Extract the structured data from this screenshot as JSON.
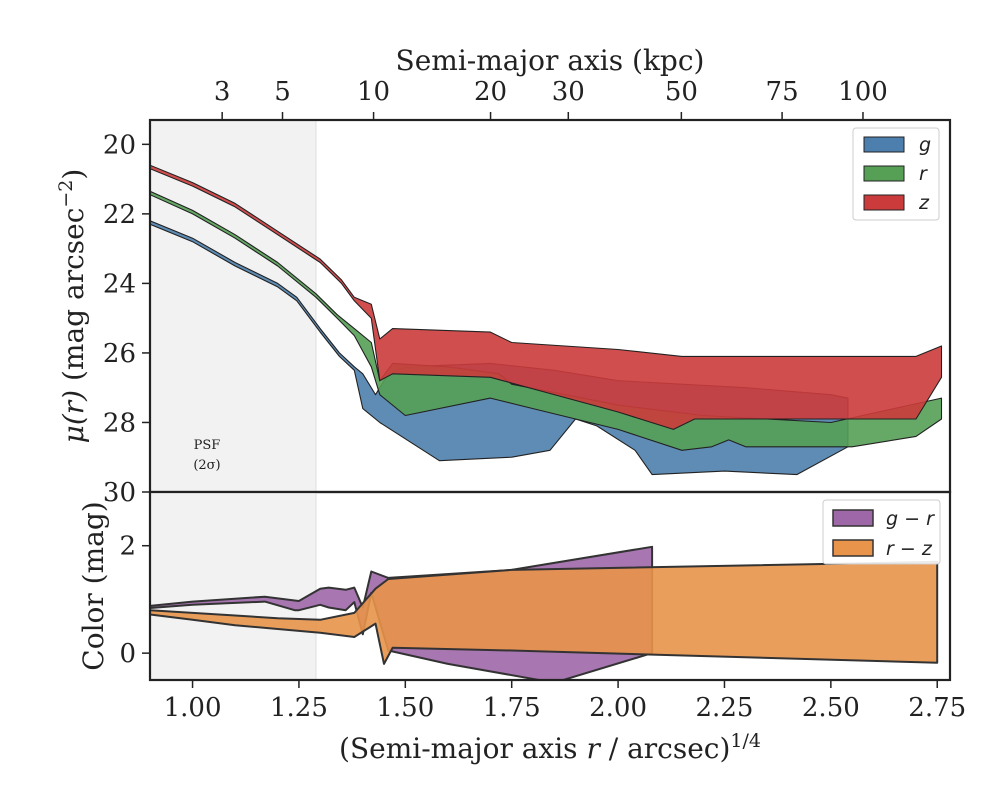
{
  "chart_data": [
    {
      "type": "area",
      "panel": "top",
      "title": "",
      "top_xlabel": "Semi-major axis (kpc)",
      "top_ticks": [
        "3",
        "5",
        "10",
        "20",
        "30",
        "50",
        "75",
        "100"
      ],
      "top_tick_values_x": [
        1.0696,
        1.2114,
        1.4254,
        1.7003,
        1.883,
        2.1487,
        2.3854,
        2.5755
      ],
      "ylabel": "μ(r) (mag arcsec⁻²)",
      "ylim": [
        30,
        19.3
      ],
      "yticks": [
        20,
        22,
        24,
        26,
        28,
        30
      ],
      "xlim": [
        0.9,
        2.78
      ],
      "psf_region_x": [
        0.9,
        1.29
      ],
      "psf_label": [
        "PSF",
        "(2σ)"
      ],
      "legend_position": "upper right",
      "series": [
        {
          "name": "g",
          "color": "#4c7fad",
          "upper": [
            [
              0.9,
              22.2
            ],
            [
              1.0,
              22.7
            ],
            [
              1.1,
              23.4
            ],
            [
              1.2,
              24.0
            ],
            [
              1.245,
              24.4
            ],
            [
              1.3,
              25.3
            ],
            [
              1.345,
              26.0
            ],
            [
              1.38,
              26.4
            ],
            [
              1.4,
              26.6
            ],
            [
              1.43,
              27.2
            ],
            [
              1.46,
              26.6
            ],
            [
              1.5,
              26.4
            ],
            [
              1.7,
              26.3
            ],
            [
              1.85,
              26.5
            ],
            [
              2.0,
              26.8
            ],
            [
              2.3,
              27.0
            ],
            [
              2.5,
              27.2
            ],
            [
              2.54,
              27.3
            ]
          ],
          "lower": [
            [
              0.9,
              22.3
            ],
            [
              1.0,
              22.8
            ],
            [
              1.1,
              23.5
            ],
            [
              1.2,
              24.1
            ],
            [
              1.245,
              24.5
            ],
            [
              1.3,
              25.4
            ],
            [
              1.345,
              26.1
            ],
            [
              1.38,
              26.5
            ],
            [
              1.4,
              27.6
            ],
            [
              1.44,
              28.0
            ],
            [
              1.58,
              29.1
            ],
            [
              1.75,
              29.0
            ],
            [
              1.84,
              28.8
            ],
            [
              1.9,
              27.9
            ],
            [
              1.95,
              28.1
            ],
            [
              2.04,
              28.8
            ],
            [
              2.08,
              29.5
            ],
            [
              2.25,
              29.4
            ],
            [
              2.42,
              29.5
            ],
            [
              2.54,
              28.7
            ]
          ]
        },
        {
          "name": "r",
          "color": "#55a055",
          "upper": [
            [
              0.9,
              21.35
            ],
            [
              1.0,
              21.9
            ],
            [
              1.1,
              22.6
            ],
            [
              1.2,
              23.4
            ],
            [
              1.29,
              24.3
            ],
            [
              1.34,
              24.9
            ],
            [
              1.38,
              25.3
            ],
            [
              1.42,
              25.7
            ],
            [
              1.44,
              26.8
            ],
            [
              1.47,
              26.3
            ],
            [
              1.6,
              26.4
            ],
            [
              1.72,
              26.6
            ],
            [
              1.75,
              26.9
            ],
            [
              2.0,
              27.5
            ],
            [
              2.2,
              27.8
            ],
            [
              2.5,
              28.0
            ],
            [
              2.76,
              27.3
            ]
          ],
          "lower": [
            [
              0.9,
              21.45
            ],
            [
              1.0,
              22.0
            ],
            [
              1.1,
              22.7
            ],
            [
              1.2,
              23.5
            ],
            [
              1.29,
              24.4
            ],
            [
              1.34,
              25.0
            ],
            [
              1.38,
              25.5
            ],
            [
              1.42,
              26.4
            ],
            [
              1.44,
              27.2
            ],
            [
              1.5,
              27.8
            ],
            [
              1.7,
              27.3
            ],
            [
              1.8,
              27.6
            ],
            [
              2.0,
              28.2
            ],
            [
              2.15,
              28.8
            ],
            [
              2.22,
              28.7
            ],
            [
              2.26,
              28.5
            ],
            [
              2.3,
              28.7
            ],
            [
              2.55,
              28.7
            ],
            [
              2.7,
              28.4
            ],
            [
              2.76,
              27.9
            ]
          ]
        },
        {
          "name": "z",
          "color": "#cc3b3b",
          "upper": [
            [
              0.9,
              20.6
            ],
            [
              1.0,
              21.1
            ],
            [
              1.1,
              21.7
            ],
            [
              1.2,
              22.5
            ],
            [
              1.3,
              23.3
            ],
            [
              1.35,
              23.9
            ],
            [
              1.38,
              24.4
            ],
            [
              1.42,
              24.6
            ],
            [
              1.44,
              25.6
            ],
            [
              1.47,
              25.3
            ],
            [
              1.7,
              25.4
            ],
            [
              1.75,
              25.7
            ],
            [
              2.0,
              25.9
            ],
            [
              2.15,
              26.1
            ],
            [
              2.7,
              26.1
            ],
            [
              2.76,
              25.8
            ]
          ],
          "lower": [
            [
              0.9,
              20.7
            ],
            [
              1.0,
              21.2
            ],
            [
              1.1,
              21.8
            ],
            [
              1.2,
              22.6
            ],
            [
              1.3,
              23.4
            ],
            [
              1.35,
              24.0
            ],
            [
              1.38,
              24.5
            ],
            [
              1.42,
              25.0
            ],
            [
              1.44,
              26.8
            ],
            [
              1.47,
              26.6
            ],
            [
              1.7,
              26.7
            ],
            [
              2.0,
              27.7
            ],
            [
              2.13,
              28.2
            ],
            [
              2.18,
              27.9
            ],
            [
              2.7,
              27.9
            ],
            [
              2.76,
              26.7
            ]
          ]
        }
      ]
    },
    {
      "type": "area",
      "panel": "bottom",
      "title": "",
      "xlabel": "(Semi-major axis r / arcsec)^1/4",
      "ylabel": "Color (mag)",
      "ylim": [
        -0.5,
        3.0
      ],
      "yticks": [
        0,
        2
      ],
      "xlim": [
        0.9,
        2.78
      ],
      "xticks": [
        1.0,
        1.25,
        1.5,
        1.75,
        2.0,
        2.25,
        2.5,
        2.75
      ],
      "xtick_labels": [
        "1.00",
        "1.25",
        "1.50",
        "1.75",
        "2.00",
        "2.25",
        "2.50",
        "2.75"
      ],
      "legend_position": "upper right",
      "series": [
        {
          "name": "g − r",
          "color": "#9e67a8",
          "upper": [
            [
              0.9,
              0.88
            ],
            [
              1.0,
              0.96
            ],
            [
              1.17,
              1.05
            ],
            [
              1.24,
              0.98
            ],
            [
              1.25,
              0.97
            ],
            [
              1.3,
              1.2
            ],
            [
              1.32,
              1.22
            ],
            [
              1.36,
              1.18
            ],
            [
              1.38,
              1.22
            ],
            [
              1.4,
              0.85
            ],
            [
              1.42,
              1.52
            ],
            [
              1.46,
              1.4
            ],
            [
              1.75,
              1.55
            ],
            [
              2.08,
              1.98
            ]
          ],
          "lower": [
            [
              0.9,
              0.84
            ],
            [
              1.0,
              0.9
            ],
            [
              1.17,
              0.96
            ],
            [
              1.24,
              0.8
            ],
            [
              1.25,
              0.8
            ],
            [
              1.3,
              0.9
            ],
            [
              1.32,
              0.85
            ],
            [
              1.36,
              0.8
            ],
            [
              1.38,
              0.95
            ],
            [
              1.4,
              0.35
            ],
            [
              1.42,
              1.12
            ],
            [
              1.46,
              0.05
            ],
            [
              1.6,
              -0.2
            ],
            [
              1.85,
              -0.55
            ],
            [
              2.08,
              0.0
            ]
          ]
        },
        {
          "name": "r − z",
          "color": "#e8944a",
          "upper": [
            [
              0.9,
              0.8
            ],
            [
              1.0,
              0.75
            ],
            [
              1.1,
              0.7
            ],
            [
              1.2,
              0.65
            ],
            [
              1.3,
              0.62
            ],
            [
              1.38,
              0.75
            ],
            [
              1.43,
              1.2
            ],
            [
              1.46,
              1.38
            ],
            [
              1.75,
              1.55
            ],
            [
              2.75,
              1.7
            ]
          ],
          "lower": [
            [
              0.9,
              0.72
            ],
            [
              1.0,
              0.62
            ],
            [
              1.1,
              0.52
            ],
            [
              1.2,
              0.45
            ],
            [
              1.3,
              0.38
            ],
            [
              1.38,
              0.3
            ],
            [
              1.43,
              0.55
            ],
            [
              1.45,
              -0.2
            ],
            [
              1.47,
              0.1
            ],
            [
              1.75,
              0.05
            ],
            [
              2.75,
              -0.18
            ]
          ]
        }
      ]
    }
  ]
}
